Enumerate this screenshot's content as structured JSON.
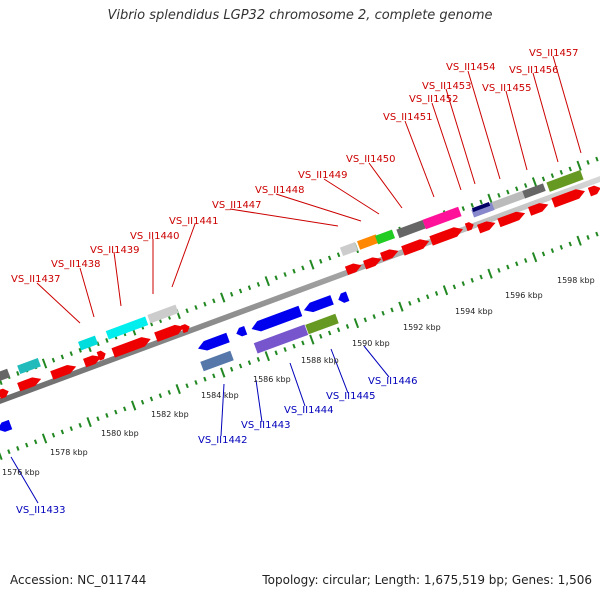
{
  "title": "Vibrio splendidus LGP32 chromosome 2, complete genome",
  "footer": {
    "accession": "Accession: NC_011744",
    "summary": "Topology: circular; Length: 1,675,519 bp; Genes: 1,506"
  },
  "scale_labels": [
    "1576 kbp",
    "1578 kbp",
    "1580 kbp",
    "1582 kbp",
    "1584 kbp",
    "1586 kbp",
    "1588 kbp",
    "1590 kbp",
    "1592 kbp",
    "1594 kbp",
    "1596 kbp",
    "1598 kbp"
  ],
  "colors": {
    "forward_label": "#cc0000",
    "reverse_label": "#0000bb",
    "backbone": "#999999",
    "tick": "#228822"
  },
  "forward_labels": [
    "VS_II1437",
    "VS_II1438",
    "VS_II1439",
    "VS_II1440",
    "VS_II1441",
    "VS_II1447",
    "VS_II1448",
    "VS_II1449",
    "VS_II1450",
    "VS_II1451",
    "VS_II1452",
    "VS_II1453",
    "VS_II1454",
    "VS_II1455",
    "VS_II1456",
    "VS_II1457"
  ],
  "reverse_labels": [
    "VS_II1433",
    "VS_II1442",
    "VS_II1443",
    "VS_II1444",
    "VS_II1445",
    "VS_II1446"
  ]
}
